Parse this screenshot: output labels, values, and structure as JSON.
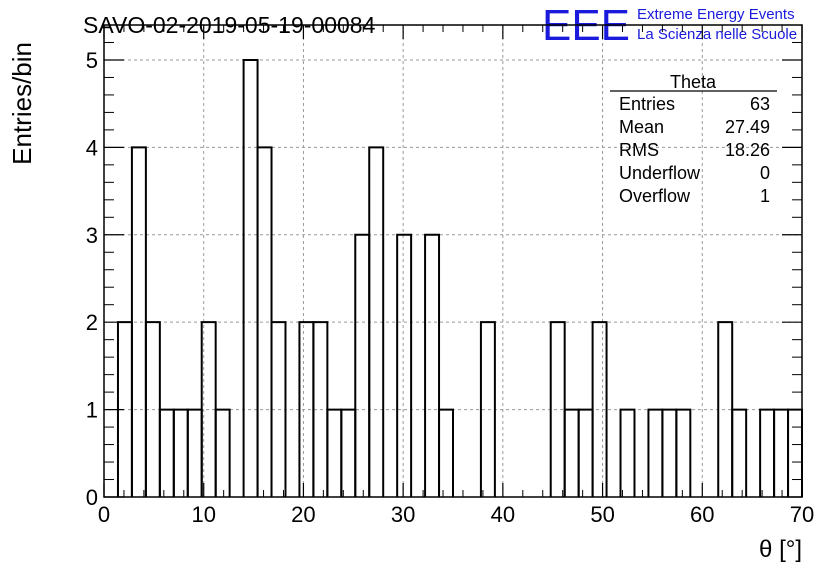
{
  "chart_data": {
    "type": "histogram",
    "title": "SAVO-02-2019-05-19-00084",
    "xlabel": "θ [°]",
    "ylabel": "Entries/bin",
    "xlim": [
      0,
      70
    ],
    "ylim": [
      0,
      5.4
    ],
    "grid": true,
    "bin_width": 1.4,
    "x_ticks": [
      "0",
      "10",
      "20",
      "30",
      "40",
      "50",
      "60",
      "70"
    ],
    "y_ticks": [
      "0",
      "1",
      "2",
      "3",
      "4",
      "5"
    ],
    "values": [
      0,
      2,
      4,
      2,
      1,
      1,
      1,
      2,
      1,
      0,
      5,
      4,
      2,
      0,
      2,
      2,
      1,
      1,
      3,
      4,
      0,
      3,
      0,
      3,
      1,
      0,
      0,
      2,
      0,
      0,
      0,
      0,
      2,
      1,
      1,
      2,
      0,
      1,
      0,
      1,
      1,
      1,
      0,
      0,
      2,
      1,
      0,
      1,
      1,
      1
    ]
  },
  "stats_box": {
    "title": "Theta",
    "rows": [
      {
        "label": "Entries",
        "value": "63"
      },
      {
        "label": "Mean",
        "value": "27.49"
      },
      {
        "label": "RMS",
        "value": "18.26"
      },
      {
        "label": "Underflow",
        "value": "0"
      },
      {
        "label": "Overflow",
        "value": "1"
      }
    ]
  },
  "logo": {
    "mark": "EEE",
    "line1": "Extreme Energy Events",
    "line2": "La Scienza nelle Scuole",
    "color": "#1a1adc"
  }
}
